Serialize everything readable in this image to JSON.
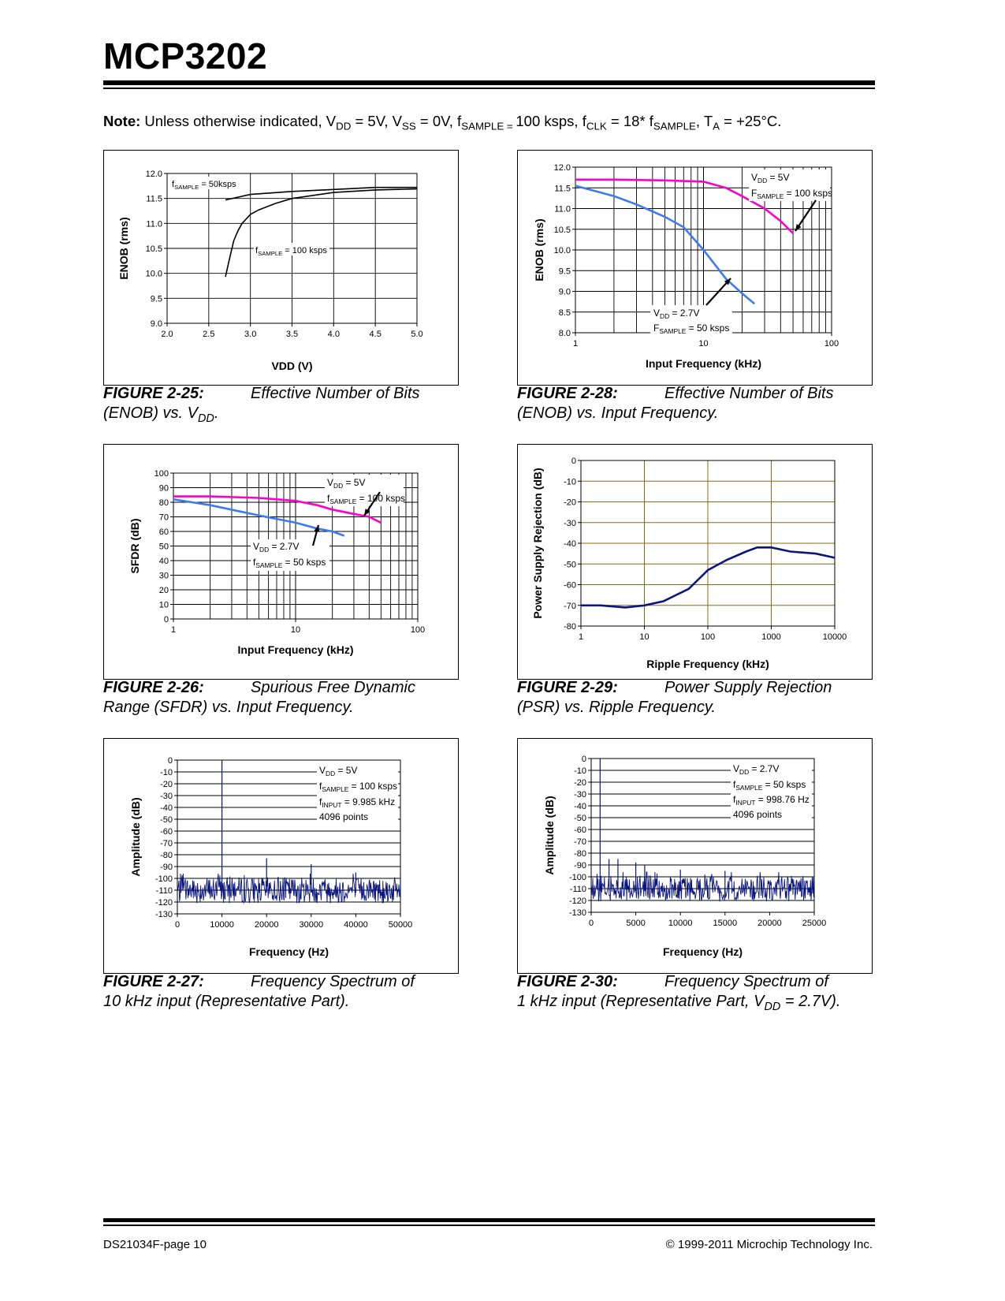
{
  "header": {
    "title": "MCP3202"
  },
  "note": {
    "label": "Note:",
    "p1": " Unless otherwise indicated, V",
    "s1": "DD",
    "p2": " = 5V, V",
    "s2": "SS",
    "p3": " = 0V, f",
    "s3": "SAMPLE = ",
    "p4": "100 ksps, f",
    "s4": "CLK",
    "p5": " = 18* f",
    "s5": "SAMPLE",
    "p6": ", T",
    "s6": "A",
    "p7": " = +25°C."
  },
  "figures": [
    {
      "id": "fig25",
      "num": "FIGURE 2-25:",
      "title": "Effective Number of Bits",
      "line2a": "(ENOB) vs. V",
      "line2sub": "DD",
      "line2b": "."
    },
    {
      "id": "fig28",
      "num": "FIGURE 2-28:",
      "title": "Effective Number of Bits",
      "line2a": "(ENOB) vs. Input Frequency.",
      "line2sub": "",
      "line2b": ""
    },
    {
      "id": "fig26",
      "num": "FIGURE 2-26:",
      "title": "Spurious Free Dynamic",
      "line2a": "Range (SFDR) vs. Input Frequency.",
      "line2sub": "",
      "line2b": ""
    },
    {
      "id": "fig29",
      "num": "FIGURE 2-29:",
      "title": "Power Supply Rejection",
      "line2a": "(PSR) vs. Ripple Frequency.",
      "line2sub": "",
      "line2b": ""
    },
    {
      "id": "fig27",
      "num": "FIGURE 2-27:",
      "title": "Frequency Spectrum of",
      "line2a": "10 kHz input (Representative Part).",
      "line2sub": "",
      "line2b": ""
    },
    {
      "id": "fig30",
      "num": "FIGURE 2-30:",
      "title": "Frequency Spectrum of",
      "line2a": "1 kHz input (Representative Part, V",
      "line2sub": "DD",
      "line2b": " = 2.7V)."
    }
  ],
  "chart_data": [
    {
      "id": "fig25",
      "type": "line",
      "scale": "linear",
      "xlabel": "VDD (V)",
      "ylabel": "ENOB (rms)",
      "xlim": [
        2.0,
        5.0
      ],
      "ylim": [
        9.0,
        12.0
      ],
      "xticks": [
        "2.0",
        "2.5",
        "3.0",
        "3.5",
        "4.0",
        "4.5",
        "5.0"
      ],
      "yticks": [
        "12.0",
        "11.5",
        "11.0",
        "10.5",
        "10.0",
        "9.5",
        "9.0"
      ],
      "series": [
        {
          "name": "fSAMPLE = 50ksps",
          "color": "#000000",
          "x": [
            2.7,
            3.0,
            3.5,
            4.0,
            4.5,
            5.0
          ],
          "y": [
            11.47,
            11.58,
            11.64,
            11.68,
            11.72,
            11.72
          ]
        },
        {
          "name": "fSAMPLE = 100 ksps",
          "color": "#000000",
          "x": [
            2.7,
            2.75,
            2.8,
            2.85,
            2.9,
            3.0,
            3.1,
            3.3,
            3.5,
            4.0,
            4.5,
            5.0
          ],
          "y": [
            9.93,
            10.3,
            10.65,
            10.85,
            11.0,
            11.18,
            11.27,
            11.4,
            11.5,
            11.62,
            11.67,
            11.69
          ]
        }
      ]
    },
    {
      "id": "fig28",
      "type": "line",
      "scale": "log",
      "xlabel": "Input Frequency (kHz)",
      "ylabel": "ENOB (rms)",
      "xlim": [
        1,
        100
      ],
      "ylim": [
        8.0,
        12.0
      ],
      "xticks": [
        "1",
        "10",
        "100"
      ],
      "yticks": [
        "12.0",
        "11.5",
        "11.0",
        "10.5",
        "10.0",
        "9.5",
        "9.0",
        "8.5",
        "8.0"
      ],
      "series": [
        {
          "name": "VDD = 5V, FSAMPLE = 100 ksps",
          "color": "#ff00cc",
          "x": [
            1,
            2,
            5,
            10,
            15,
            20,
            30,
            40,
            50
          ],
          "y": [
            11.7,
            11.7,
            11.68,
            11.65,
            11.5,
            11.3,
            11.0,
            10.7,
            10.4
          ]
        },
        {
          "name": "VDD = 2.7V, FSAMPLE = 50 ksps",
          "color": "#3c7cf0",
          "x": [
            1,
            2,
            3,
            5,
            7,
            10,
            15,
            20,
            25
          ],
          "y": [
            11.55,
            11.3,
            11.1,
            10.8,
            10.55,
            10.0,
            9.3,
            8.95,
            8.7
          ]
        }
      ],
      "annotations": [
        {
          "text": "VDD = 5V",
          "sub": "DD"
        },
        {
          "text": "FSAMPLE = 100 ksps"
        },
        {
          "text": "VDD = 2.7V"
        },
        {
          "text": "FSAMPLE = 50 ksps"
        }
      ]
    },
    {
      "id": "fig26",
      "type": "line",
      "scale": "log",
      "xlabel": "Input Frequency (kHz)",
      "ylabel": "SFDR (dB)",
      "xlim": [
        1,
        100
      ],
      "ylim": [
        0,
        100
      ],
      "xticks": [
        "1",
        "10",
        "100"
      ],
      "yticks": [
        "100",
        "90",
        "80",
        "70",
        "60",
        "50",
        "40",
        "30",
        "20",
        "10",
        "0"
      ],
      "series": [
        {
          "name": "VDD = 5V, fSAMPLE = 100 ksps",
          "color": "#ff00cc",
          "x": [
            1,
            2,
            5,
            10,
            15,
            20,
            30,
            40,
            50
          ],
          "y": [
            84,
            84,
            83,
            81,
            78,
            75,
            72,
            70,
            66
          ]
        },
        {
          "name": "VDD = 2.7V, fSAMPLE = 50 ksps",
          "color": "#3c7cf0",
          "x": [
            1,
            2,
            5,
            10,
            15,
            20,
            25
          ],
          "y": [
            82,
            78,
            71,
            66,
            62,
            60,
            57
          ]
        }
      ]
    },
    {
      "id": "fig29",
      "type": "line",
      "scale": "log",
      "xlabel": "Ripple Frequency (kHz)",
      "ylabel": "Power Supply Rejection (dB)",
      "xlim": [
        1,
        10000
      ],
      "ylim": [
        -80,
        0
      ],
      "xticks": [
        "1",
        "10",
        "100",
        "1000",
        "10000"
      ],
      "yticks": [
        "0",
        "-10",
        "-20",
        "-30",
        "-40",
        "-50",
        "-60",
        "-70",
        "-80"
      ],
      "series": [
        {
          "name": "PSR",
          "color": "#0a1580",
          "x": [
            1,
            2,
            5,
            10,
            20,
            50,
            100,
            200,
            400,
            600,
            1000,
            2000,
            5000,
            10000
          ],
          "y": [
            -70,
            -70,
            -71,
            -70,
            -68,
            -62,
            -53,
            -48,
            -44,
            -42,
            -42,
            -44,
            -45,
            -47
          ]
        }
      ]
    },
    {
      "id": "fig27",
      "type": "line",
      "scale": "linear",
      "xlabel": "Frequency (Hz)",
      "ylabel": "Amplitude (dB)",
      "xlim": [
        0,
        50000
      ],
      "ylim": [
        -130,
        0
      ],
      "xticks": [
        "0",
        "10000",
        "20000",
        "30000",
        "40000",
        "50000"
      ],
      "yticks": [
        "0",
        "-10",
        "-20",
        "-30",
        "-40",
        "-50",
        "-60",
        "-70",
        "-80",
        "-90",
        "-100",
        "-110",
        "-120",
        "-130"
      ],
      "noise_floor": -110,
      "spikes": [
        {
          "x": 10000,
          "y": 0
        },
        {
          "x": 20000,
          "y": -83
        },
        {
          "x": 30000,
          "y": -88
        },
        {
          "x": 40000,
          "y": -95
        },
        {
          "x": 50000,
          "y": -97
        }
      ],
      "annotations": [
        {
          "text": "VDD = 5V"
        },
        {
          "text": "fSAMPLE = 100 ksps"
        },
        {
          "text": "fINPUT = 9.985 kHz"
        },
        {
          "text": "4096 points"
        }
      ]
    },
    {
      "id": "fig30",
      "type": "line",
      "scale": "linear",
      "xlabel": "Frequency (Hz)",
      "ylabel": "Amplitude (dB)",
      "xlim": [
        0,
        25000
      ],
      "ylim": [
        -130,
        0
      ],
      "xticks": [
        "0",
        "5000",
        "10000",
        "15000",
        "20000",
        "25000"
      ],
      "yticks": [
        "0",
        "-10",
        "-20",
        "-30",
        "-40",
        "-50",
        "-60",
        "-70",
        "-80",
        "-90",
        "-100",
        "-110",
        "-120",
        "-130"
      ],
      "noise_floor": -110,
      "spikes": [
        {
          "x": 1000,
          "y": 0
        },
        {
          "x": 2000,
          "y": -85
        },
        {
          "x": 3000,
          "y": -85
        },
        {
          "x": 5000,
          "y": -88
        },
        {
          "x": 6000,
          "y": -90
        },
        {
          "x": 10000,
          "y": -94
        },
        {
          "x": 15000,
          "y": -95
        }
      ],
      "annotations": [
        {
          "text": "VDD = 2.7V"
        },
        {
          "text": "fSAMPLE = 50 ksps"
        },
        {
          "text": "fINPUT = 998.76 Hz"
        },
        {
          "text": "4096 points"
        }
      ]
    }
  ],
  "footer": {
    "left": "DS21034F-page 10",
    "right": "© 1999-2011 Microchip Technology Inc."
  }
}
